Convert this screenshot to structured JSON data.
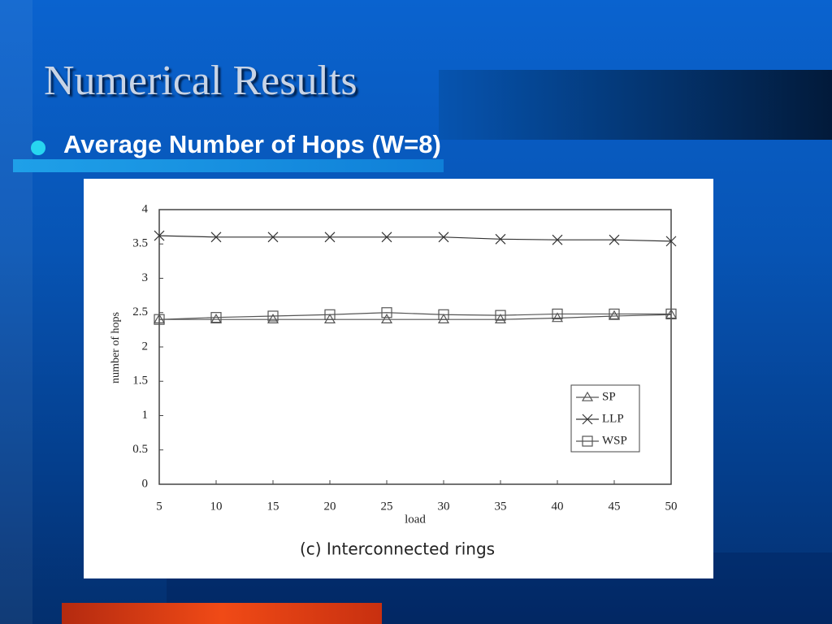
{
  "slide": {
    "title": "Numerical Results",
    "bullet": "Average Number of Hops (W=8)"
  },
  "chart_data": {
    "type": "line",
    "caption": "(c) Interconnected rings",
    "xlabel": "load",
    "ylabel": "number of hops",
    "x": [
      5,
      10,
      15,
      20,
      25,
      30,
      35,
      40,
      45,
      50
    ],
    "xlim": [
      5,
      50
    ],
    "xticks": [
      5,
      10,
      15,
      20,
      25,
      30,
      35,
      40,
      45,
      50
    ],
    "ylim": [
      0,
      4
    ],
    "yticks": [
      0,
      0.5,
      1,
      1.5,
      2,
      2.5,
      3,
      3.5,
      4
    ],
    "series": [
      {
        "name": "SP",
        "color": "#555555",
        "marker": "triangle",
        "values": [
          2.4,
          2.4,
          2.4,
          2.4,
          2.4,
          2.4,
          2.4,
          2.42,
          2.45,
          2.47
        ]
      },
      {
        "name": "LLP",
        "color": "#333333",
        "marker": "x",
        "values": [
          3.62,
          3.6,
          3.6,
          3.6,
          3.6,
          3.6,
          3.57,
          3.56,
          3.56,
          3.54
        ]
      },
      {
        "name": "WSP",
        "color": "#555555",
        "marker": "square",
        "values": [
          2.4,
          2.43,
          2.45,
          2.47,
          2.5,
          2.47,
          2.46,
          2.48,
          2.48,
          2.48
        ]
      }
    ]
  }
}
